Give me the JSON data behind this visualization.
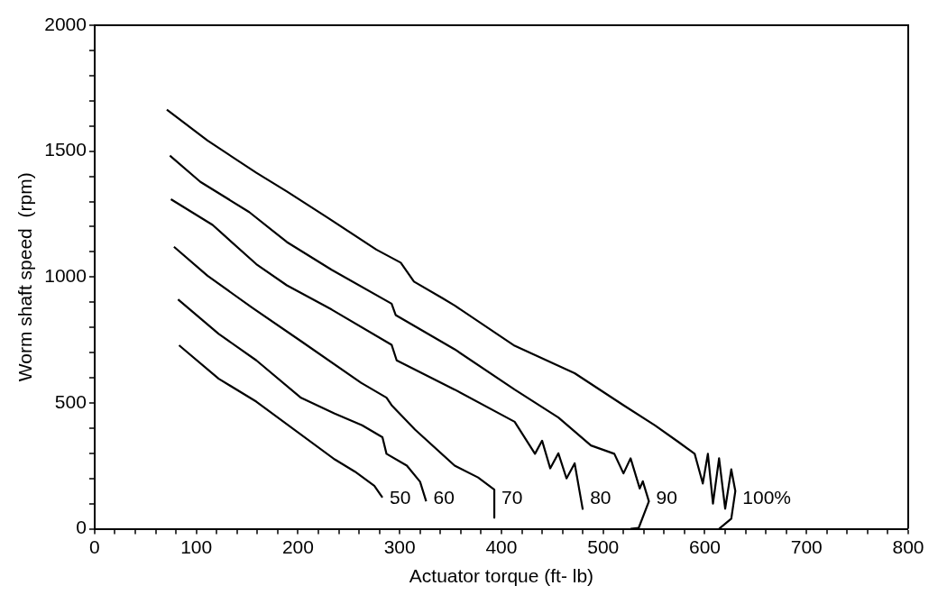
{
  "chart_data": {
    "type": "line",
    "xlabel": "Actuator torque (ft- lb)",
    "ylabel": "Worm shaft speed  (rpm)",
    "xlim": [
      0,
      800
    ],
    "xticks": [
      0,
      100,
      200,
      300,
      400,
      500,
      600,
      700,
      800
    ],
    "ylim": [
      0,
      2000
    ],
    "yticks": [
      0,
      500,
      1000,
      1500,
      2000
    ],
    "grid": false,
    "legend": false,
    "marker": "none",
    "line_style": "solid",
    "series": [
      {
        "name": "100%",
        "color": "#000000",
        "x": [
          71,
          111,
          159,
          189,
          229,
          277,
          301,
          314,
          342,
          354,
          413,
          472,
          520,
          551,
          574,
          590,
          598,
          603,
          608,
          614,
          620,
          626,
          630,
          626,
          614
        ],
        "values": [
          1665,
          1542,
          1414,
          1340,
          1236,
          1109,
          1057,
          982,
          916,
          887,
          727,
          618,
          491,
          411,
          345,
          298,
          180,
          298,
          100,
          280,
          80,
          236,
          150,
          40,
          0
        ]
      },
      {
        "name": "90",
        "color": "#000000",
        "x": [
          74,
          104,
          152,
          189,
          233,
          292,
          296,
          354,
          413,
          456,
          488,
          511,
          520,
          527,
          536,
          539,
          545,
          535,
          527
        ],
        "values": [
          1482,
          1378,
          1258,
          1139,
          1029,
          894,
          849,
          713,
          553,
          442,
          331,
          298,
          220,
          280,
          160,
          189,
          109,
          4,
          0
        ]
      },
      {
        "name": "80",
        "color": "#000000",
        "x": [
          75,
          116,
          159,
          189,
          233,
          292,
          297,
          354,
          413,
          433,
          440,
          448,
          456,
          464,
          472,
          480
        ],
        "values": [
          1309,
          1207,
          1051,
          967,
          871,
          731,
          669,
          553,
          425,
          298,
          350,
          240,
          300,
          200,
          260,
          76
        ]
      },
      {
        "name": "70",
        "color": "#000000",
        "x": [
          78,
          111,
          155,
          203,
          262,
          287,
          292,
          315,
          354,
          377,
          393,
          393
        ],
        "values": [
          1120,
          1005,
          878,
          745,
          580,
          521,
          491,
          394,
          251,
          204,
          156,
          44
        ]
      },
      {
        "name": "60",
        "color": "#000000",
        "x": [
          82,
          122,
          159,
          203,
          236,
          263,
          283,
          287,
          307,
          320,
          326
        ],
        "values": [
          911,
          774,
          669,
          520,
          458,
          411,
          364,
          298,
          251,
          187,
          109
        ]
      },
      {
        "name": "50",
        "color": "#000000",
        "x": [
          83,
          122,
          159,
          236,
          256,
          275,
          283
        ],
        "values": [
          729,
          596,
          505,
          276,
          227,
          171,
          124
        ]
      }
    ]
  }
}
